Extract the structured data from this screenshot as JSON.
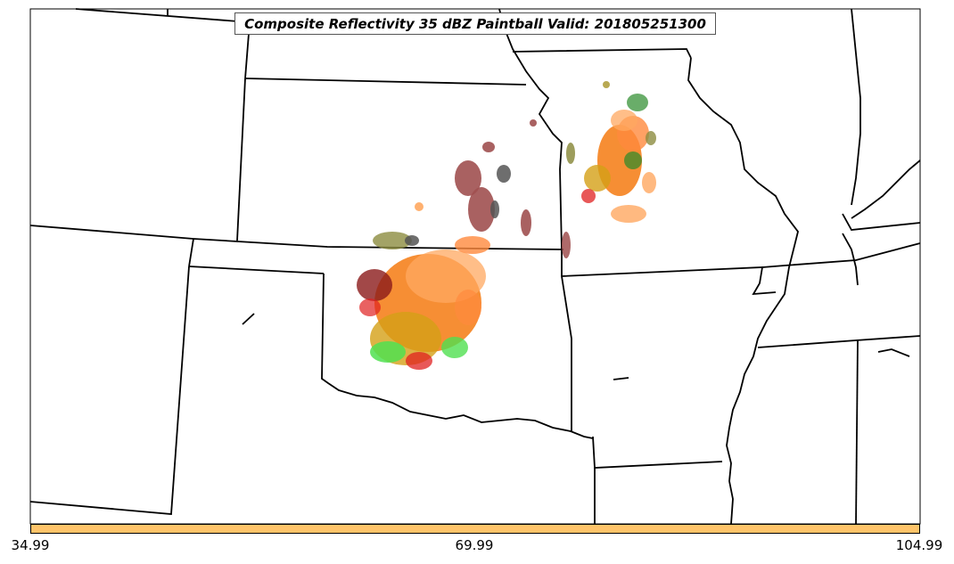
{
  "title": "Composite Reflectivity 35 dBZ Paintball Valid: 201805251300",
  "colorbar": {
    "color": "#ffc46a",
    "ticks": [
      "34.99",
      "69.99",
      "104.99"
    ]
  },
  "colors": {
    "background": "#ffffff",
    "borders": "#000000",
    "paintball": [
      "#f47a10",
      "#ff8a3d",
      "#ffa860",
      "#d4a017",
      "#a05050",
      "#8b1a1a",
      "#e02020",
      "#ff4040",
      "#50e050",
      "#2a8a2a",
      "#8c8c40",
      "#555555",
      "#b0a040"
    ]
  }
}
